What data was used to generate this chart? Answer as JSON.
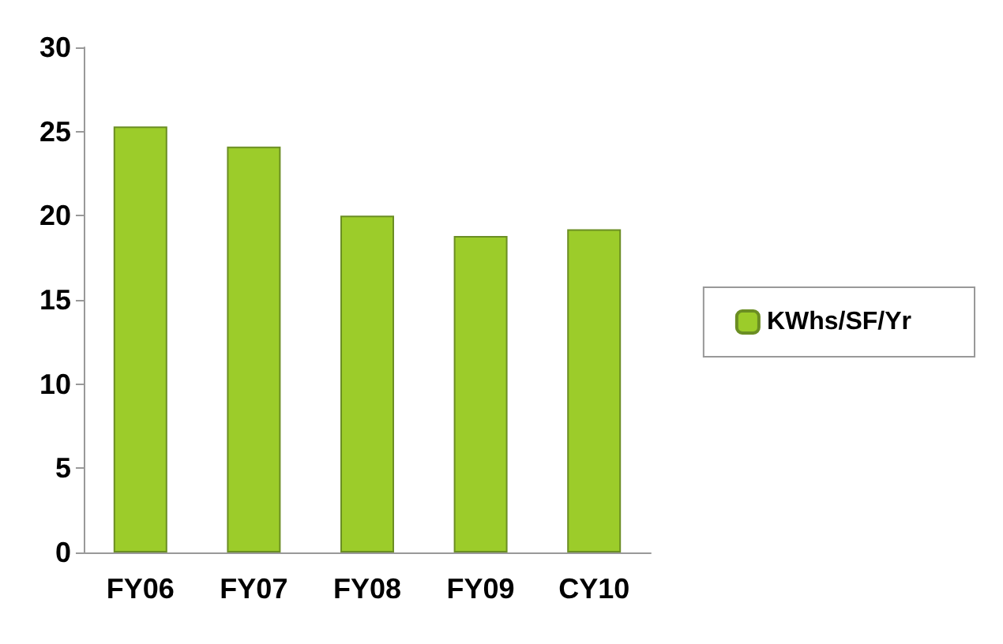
{
  "chart_data": {
    "type": "bar",
    "categories": [
      "FY06",
      "FY07",
      "FY08",
      "FY09",
      "CY10"
    ],
    "series": [
      {
        "name": "KWhs/SF/Yr",
        "color": "#9ccc2a",
        "values": [
          25.3,
          24.1,
          20,
          18.8,
          19.2
        ]
      }
    ],
    "ylim": [
      0,
      30
    ],
    "yticks": [
      0,
      5,
      10,
      15,
      20,
      25,
      30
    ],
    "grid": false,
    "legend": "right"
  }
}
